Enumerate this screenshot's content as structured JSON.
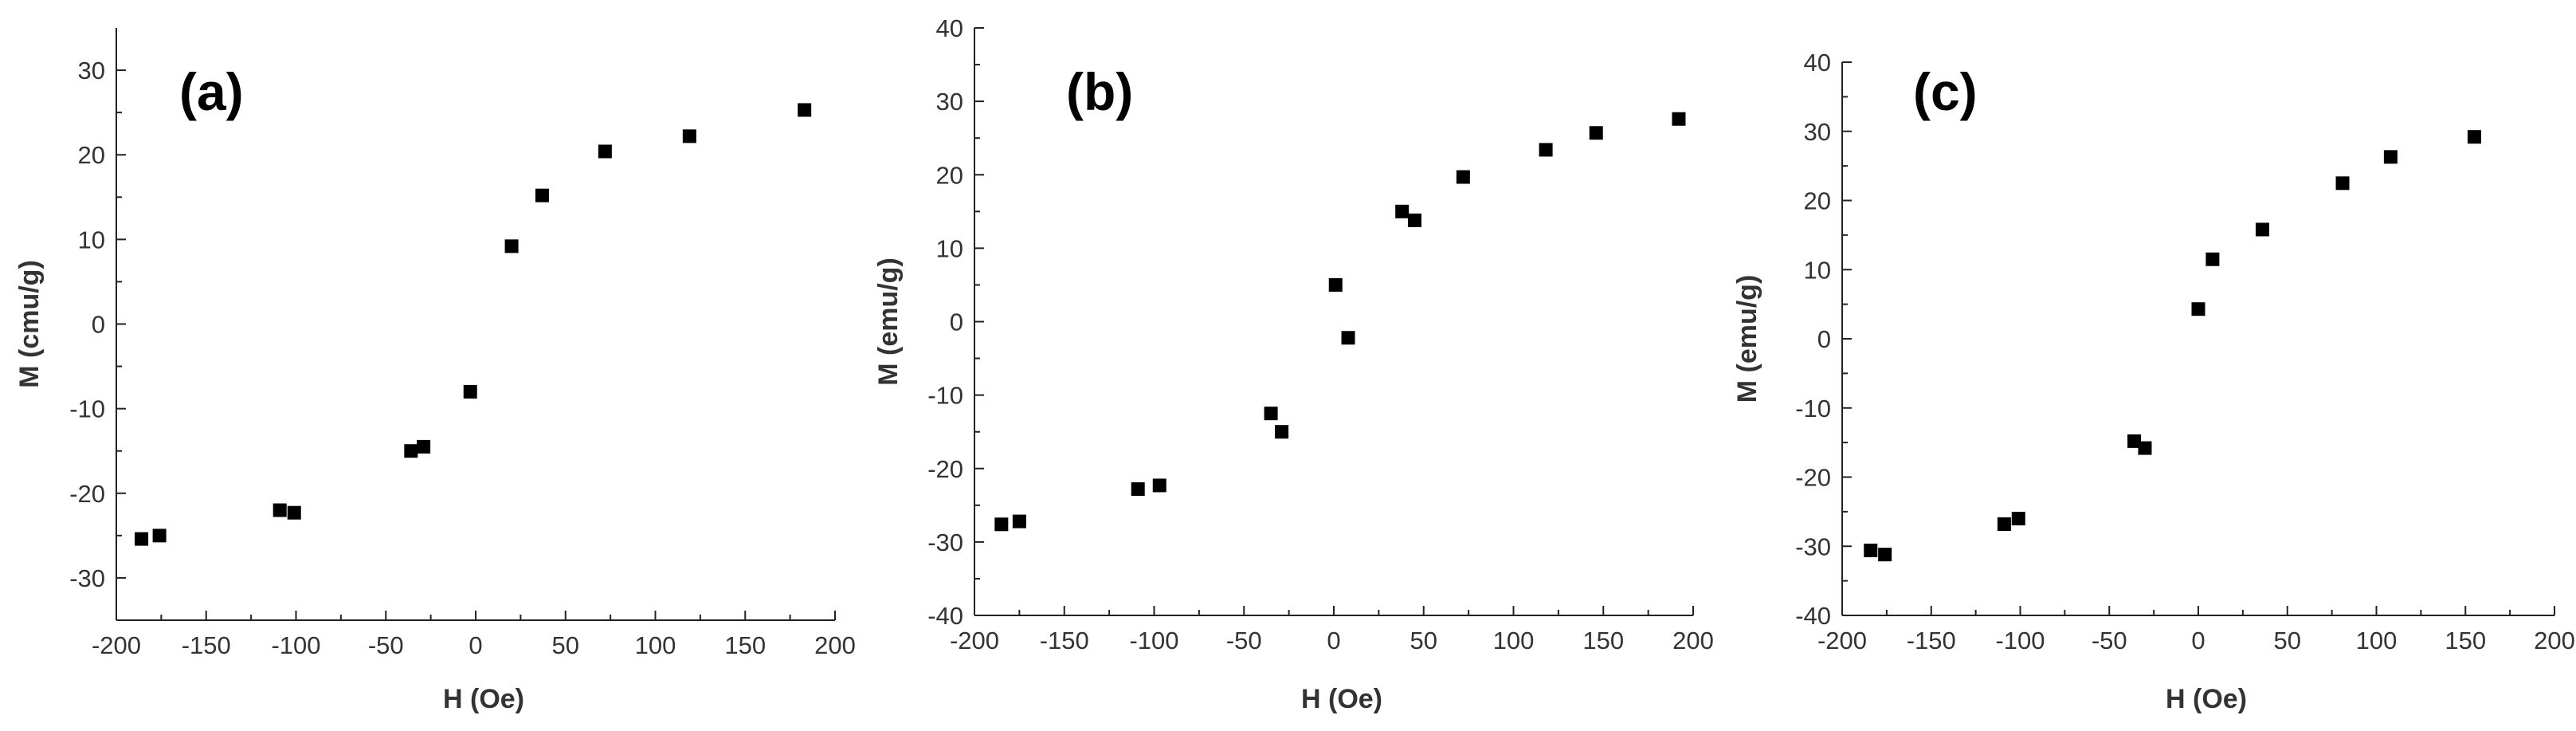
{
  "chart_data": [
    {
      "type": "scatter",
      "panel_label": "(a)",
      "xlabel": "H (Oe)",
      "ylabel": "M (cmu/g)",
      "xlim": [
        -200,
        200
      ],
      "ylim": [
        -35,
        35
      ],
      "xticks": [
        -200,
        -150,
        -100,
        -50,
        0,
        50,
        100,
        150,
        200
      ],
      "yticks": [
        -30,
        -20,
        -10,
        0,
        10,
        20,
        30
      ],
      "marker": "square",
      "color": "#000000",
      "points": [
        {
          "x": -186,
          "y": -25.4
        },
        {
          "x": -176,
          "y": -25.0
        },
        {
          "x": -109,
          "y": -22.0
        },
        {
          "x": -101,
          "y": -22.3
        },
        {
          "x": -36,
          "y": -15.0
        },
        {
          "x": -29,
          "y": -14.5
        },
        {
          "x": -3,
          "y": -8.0
        },
        {
          "x": 20,
          "y": 9.2
        },
        {
          "x": 37,
          "y": 15.2
        },
        {
          "x": 72,
          "y": 20.4
        },
        {
          "x": 119,
          "y": 22.2
        },
        {
          "x": 183,
          "y": 25.3
        }
      ]
    },
    {
      "type": "scatter",
      "panel_label": "(b)",
      "xlabel": "H (Oe)",
      "ylabel": "M (emu/g)",
      "xlim": [
        -200,
        200
      ],
      "ylim": [
        -40,
        40
      ],
      "xticks": [
        -200,
        -150,
        -100,
        -50,
        0,
        50,
        100,
        150,
        200
      ],
      "yticks": [
        -40,
        -30,
        -20,
        -10,
        0,
        10,
        20,
        30,
        40
      ],
      "marker": "square",
      "color": "#000000",
      "points": [
        {
          "x": -185,
          "y": -27.6
        },
        {
          "x": -175,
          "y": -27.2
        },
        {
          "x": -109,
          "y": -22.8
        },
        {
          "x": -97,
          "y": -22.3
        },
        {
          "x": -35,
          "y": -12.5
        },
        {
          "x": -29,
          "y": -15.0
        },
        {
          "x": 1,
          "y": 5.0
        },
        {
          "x": 8,
          "y": -2.2
        },
        {
          "x": 38,
          "y": 15.0
        },
        {
          "x": 45,
          "y": 13.8
        },
        {
          "x": 72,
          "y": 19.7
        },
        {
          "x": 118,
          "y": 23.4
        },
        {
          "x": 146,
          "y": 25.7
        },
        {
          "x": 192,
          "y": 27.6
        }
      ]
    },
    {
      "type": "scatter",
      "panel_label": "(c)",
      "xlabel": "H (Oe)",
      "ylabel": "M (emu/g)",
      "xlim": [
        -200,
        200
      ],
      "ylim": [
        -40,
        40
      ],
      "xticks": [
        -200,
        -150,
        -100,
        -50,
        0,
        50,
        100,
        150,
        200
      ],
      "yticks": [
        -40,
        -30,
        -20,
        -10,
        0,
        10,
        20,
        30,
        40
      ],
      "marker": "square",
      "color": "#000000",
      "points": [
        {
          "x": -184,
          "y": -30.6
        },
        {
          "x": -176,
          "y": -31.2
        },
        {
          "x": -109,
          "y": -26.8
        },
        {
          "x": -101,
          "y": -26.0
        },
        {
          "x": -36,
          "y": -14.8
        },
        {
          "x": -30,
          "y": -15.8
        },
        {
          "x": 0,
          "y": 4.3
        },
        {
          "x": 8,
          "y": 11.5
        },
        {
          "x": 36,
          "y": 15.8
        },
        {
          "x": 81,
          "y": 22.5
        },
        {
          "x": 108,
          "y": 26.3
        },
        {
          "x": 155,
          "y": 29.2
        }
      ]
    }
  ]
}
